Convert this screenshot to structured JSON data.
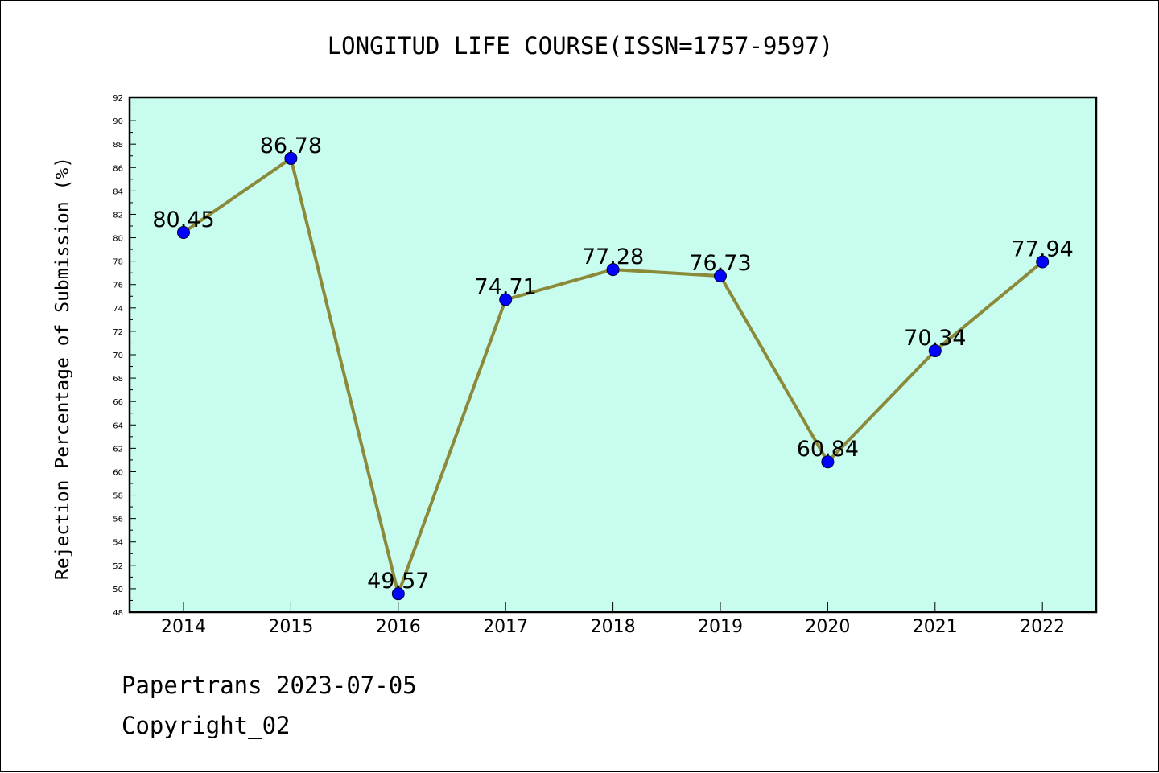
{
  "chart_data": {
    "type": "line",
    "title": "LONGITUD LIFE COURSE(ISSN=1757-9597)",
    "xlabel": "",
    "ylabel": "Rejection Percentage of Submission (%)",
    "categories": [
      "2014",
      "2015",
      "2016",
      "2017",
      "2018",
      "2019",
      "2020",
      "2021",
      "2022"
    ],
    "series": [
      {
        "values": [
          80.45,
          86.78,
          49.57,
          74.71,
          77.28,
          76.73,
          60.84,
          70.34,
          77.94
        ]
      }
    ],
    "data_labels": [
      "80.45",
      "86.78",
      "49.57",
      "74.71",
      "77.28",
      "76.73",
      "60.84",
      "70.34",
      "77.94"
    ],
    "ylim": [
      48,
      92
    ],
    "yticks": [
      48,
      50,
      52,
      54,
      56,
      58,
      60,
      62,
      64,
      66,
      68,
      70,
      72,
      74,
      76,
      78,
      80,
      82,
      84,
      86,
      88,
      90,
      92
    ],
    "grid": false,
    "legend": "none"
  },
  "colors": {
    "plot_background": "#c8fcee",
    "line": "#8b8a3a",
    "marker": "#0000ff"
  },
  "footer": {
    "source": "Papertrans 2023-07-05",
    "copyright": "Copyright_02"
  }
}
